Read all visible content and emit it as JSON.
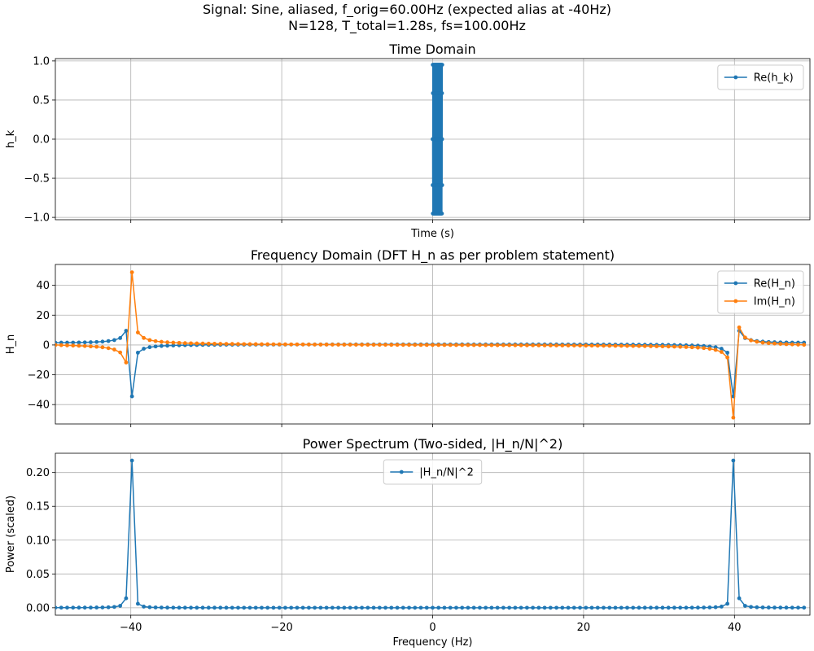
{
  "figure": {
    "title_line1": "Signal: Sine, aliased, f_orig=60.00Hz (expected alias at -40Hz)",
    "title_line2": "N=128, T_total=1.28s, fs=100.00Hz"
  },
  "colors": {
    "series1": "#1f77b4",
    "series2": "#ff7f0e",
    "grid": "#b0b0b0",
    "axis": "#000000"
  },
  "chart_data": [
    {
      "id": "time",
      "type": "line",
      "title": "Time Domain",
      "xlabel": "Time (s)",
      "ylabel": "h_k",
      "xlim": [
        -50,
        50
      ],
      "ylim": [
        -1.03,
        1.03
      ],
      "xticks": [
        -40,
        -20,
        0,
        20,
        40
      ],
      "xtick_labels_visible": false,
      "yticks": [
        -1.0,
        -0.5,
        0.0,
        0.5,
        1.0
      ],
      "ytick_labels": [
        "−1.0",
        "−0.5",
        "0.0",
        "0.5",
        "1.0"
      ],
      "grid": true,
      "legend_position": "upper right",
      "x_values": "time samples t_k = k/100, k = 0..127 (0 to 1.27 s)",
      "series": [
        {
          "name": "Re(h_k)",
          "color": "#1f77b4",
          "formula": "sin(2*pi*60*t_k)",
          "values_note": "128 samples in [-0.951, 0.951]"
        }
      ]
    },
    {
      "id": "freq",
      "type": "line",
      "title": "Frequency Domain (DFT H_n as per problem statement)",
      "xlabel": "",
      "ylabel": "H_n",
      "xlim": [
        -50,
        50
      ],
      "ylim": [
        -53,
        54
      ],
      "xticks": [
        -40,
        -20,
        0,
        20,
        40
      ],
      "xtick_labels_visible": false,
      "yticks": [
        -40,
        -20,
        0,
        20,
        40
      ],
      "ytick_labels": [
        "−40",
        "−20",
        "0",
        "20",
        "40"
      ],
      "grid": true,
      "legend_position": "upper right",
      "x_values": "frequencies n*0.78125 Hz, n = -64..63 (-50 to 49.22 Hz)",
      "series": [
        {
          "name": "Re(H_n)",
          "color": "#1f77b4",
          "peaks": [
            {
              "x": -39.84,
              "y": -34.5
            },
            {
              "x": 39.84,
              "y": -34.5
            }
          ]
        },
        {
          "name": "Im(H_n)",
          "color": "#ff7f0e",
          "peaks": [
            {
              "x": -39.84,
              "y": 49.0
            },
            {
              "x": 39.84,
              "y": -49.0
            }
          ]
        }
      ]
    },
    {
      "id": "power",
      "type": "line",
      "title": "Power Spectrum (Two-sided, |H_n/N|^2)",
      "xlabel": "Frequency (Hz)",
      "ylabel": "Power (scaled)",
      "xlim": [
        -50,
        50
      ],
      "ylim": [
        -0.011,
        0.2285
      ],
      "xticks": [
        -40,
        -20,
        0,
        20,
        40
      ],
      "xtick_labels": [
        "−40",
        "−20",
        "0",
        "20",
        "40"
      ],
      "xtick_labels_visible": true,
      "yticks": [
        0.0,
        0.05,
        0.1,
        0.15,
        0.2
      ],
      "ytick_labels": [
        "0.00",
        "0.05",
        "0.10",
        "0.15",
        "0.20"
      ],
      "grid": true,
      "legend_position": "upper center",
      "series": [
        {
          "name": "|H_n/N|^2",
          "color": "#1f77b4",
          "peaks": [
            {
              "x": -39.84,
              "y": 0.217
            },
            {
              "x": 39.84,
              "y": 0.217
            }
          ]
        }
      ]
    }
  ]
}
